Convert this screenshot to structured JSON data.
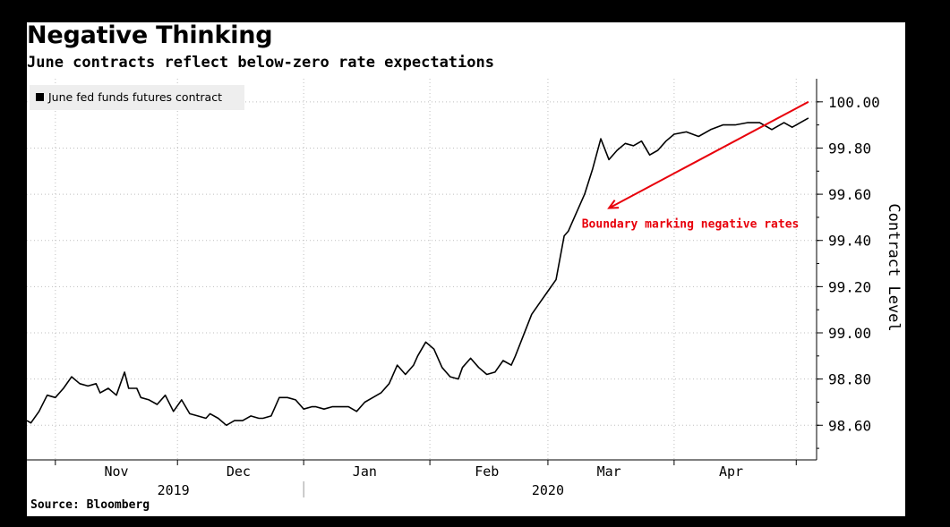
{
  "title": "Negative Thinking",
  "subtitle": "June contracts reflect below-zero rate expectations",
  "source": "Source: Bloomberg",
  "colors": {
    "line": "#000000",
    "annotation": "#e8000b",
    "grid": "#bfbfbf"
  },
  "chart_data": {
    "type": "line",
    "title": "Negative Thinking",
    "subtitle": "June contracts reflect below-zero rate expectations",
    "xlabel": "",
    "ylabel": "Contract Level",
    "ylim": [
      98.45,
      100.1
    ],
    "xlim": [
      "2019-10-25",
      "2020-05-06"
    ],
    "y_ticks": [
      98.6,
      98.8,
      99.0,
      99.2,
      99.4,
      99.6,
      99.8,
      100.0
    ],
    "y_tick_labels": [
      "98.60",
      "98.80",
      "99.00",
      "99.20",
      "99.40",
      "99.60",
      "99.80",
      "100.00"
    ],
    "x_month_labels": [
      {
        "label": "Nov",
        "x": "2019-11-16"
      },
      {
        "label": "Dec",
        "x": "2019-12-16"
      },
      {
        "label": "Jan",
        "x": "2020-01-16"
      },
      {
        "label": "Feb",
        "x": "2020-02-15"
      },
      {
        "label": "Mar",
        "x": "2020-03-16"
      },
      {
        "label": "Apr",
        "x": "2020-04-15"
      }
    ],
    "x_month_boundaries": [
      "2019-11-01",
      "2019-12-01",
      "2020-01-01",
      "2020-02-01",
      "2020-03-01",
      "2020-04-01",
      "2020-05-01"
    ],
    "x_year_labels": [
      {
        "label": "2019",
        "x": "2019-11-30"
      },
      {
        "label": "2020",
        "x": "2020-03-01"
      }
    ],
    "x_year_boundary": "2020-01-01",
    "grid": true,
    "legend": "top-left",
    "series": [
      {
        "name": "June fed funds futures contract",
        "x": [
          "2019-10-25",
          "2019-10-26",
          "2019-10-28",
          "2019-10-30",
          "2019-11-01",
          "2019-11-03",
          "2019-11-05",
          "2019-11-07",
          "2019-11-09",
          "2019-11-11",
          "2019-11-12",
          "2019-11-14",
          "2019-11-16",
          "2019-11-18",
          "2019-11-19",
          "2019-11-21",
          "2019-11-22",
          "2019-11-24",
          "2019-11-26",
          "2019-11-28",
          "2019-11-30",
          "2019-12-02",
          "2019-12-04",
          "2019-12-06",
          "2019-12-08",
          "2019-12-09",
          "2019-12-11",
          "2019-12-13",
          "2019-12-15",
          "2019-12-17",
          "2019-12-19",
          "2019-12-21",
          "2019-12-22",
          "2019-12-24",
          "2019-12-26",
          "2019-12-28",
          "2019-12-30",
          "2020-01-01",
          "2020-01-03",
          "2020-01-04",
          "2020-01-06",
          "2020-01-08",
          "2020-01-10",
          "2020-01-12",
          "2020-01-14",
          "2020-01-16",
          "2020-01-18",
          "2020-01-20",
          "2020-01-22",
          "2020-01-24",
          "2020-01-26",
          "2020-01-28",
          "2020-01-29",
          "2020-01-31",
          "2020-02-02",
          "2020-02-04",
          "2020-02-06",
          "2020-02-08",
          "2020-02-09",
          "2020-02-11",
          "2020-02-13",
          "2020-02-15",
          "2020-02-17",
          "2020-02-19",
          "2020-02-21",
          "2020-02-22",
          "2020-02-24",
          "2020-02-26",
          "2020-02-28",
          "2020-03-01",
          "2020-03-03",
          "2020-03-05",
          "2020-03-06",
          "2020-03-08",
          "2020-03-10",
          "2020-03-12",
          "2020-03-14",
          "2020-03-16",
          "2020-03-18",
          "2020-03-20",
          "2020-03-22",
          "2020-03-24",
          "2020-03-26",
          "2020-03-28",
          "2020-03-30",
          "2020-04-01",
          "2020-04-04",
          "2020-04-07",
          "2020-04-10",
          "2020-04-13",
          "2020-04-16",
          "2020-04-19",
          "2020-04-22",
          "2020-04-25",
          "2020-04-28",
          "2020-04-30",
          "2020-05-02",
          "2020-05-04"
        ],
        "y": [
          98.62,
          98.61,
          98.66,
          98.73,
          98.72,
          98.76,
          98.81,
          98.78,
          98.77,
          98.78,
          98.74,
          98.76,
          98.73,
          98.83,
          98.76,
          98.76,
          98.72,
          98.71,
          98.69,
          98.73,
          98.66,
          98.71,
          98.65,
          98.64,
          98.63,
          98.65,
          98.63,
          98.6,
          98.62,
          98.62,
          98.64,
          98.63,
          98.63,
          98.64,
          98.72,
          98.72,
          98.71,
          98.67,
          98.68,
          98.68,
          98.67,
          98.68,
          98.68,
          98.68,
          98.66,
          98.7,
          98.72,
          98.74,
          98.78,
          98.86,
          98.82,
          98.86,
          98.9,
          98.96,
          98.93,
          98.85,
          98.81,
          98.8,
          98.85,
          98.89,
          98.85,
          98.82,
          98.83,
          98.88,
          98.86,
          98.9,
          98.99,
          99.08,
          99.13,
          99.18,
          99.23,
          99.42,
          99.44,
          99.52,
          99.6,
          99.71,
          99.84,
          99.75,
          99.79,
          99.82,
          99.81,
          99.83,
          99.77,
          99.79,
          99.83,
          99.86,
          99.87,
          99.85,
          99.88,
          99.9,
          99.9,
          99.91,
          99.91,
          99.88,
          99.91,
          99.89,
          99.91,
          99.93
        ]
      }
    ],
    "annotations": [
      {
        "text": "Boundary marking negative rates",
        "x": "2020-04-05",
        "y": 99.47,
        "color": "#e8000b"
      }
    ],
    "arrow": {
      "from": [
        "2020-05-04",
        100.0
      ],
      "to": [
        "2020-03-16",
        99.54
      ],
      "color": "#e8000b"
    }
  }
}
